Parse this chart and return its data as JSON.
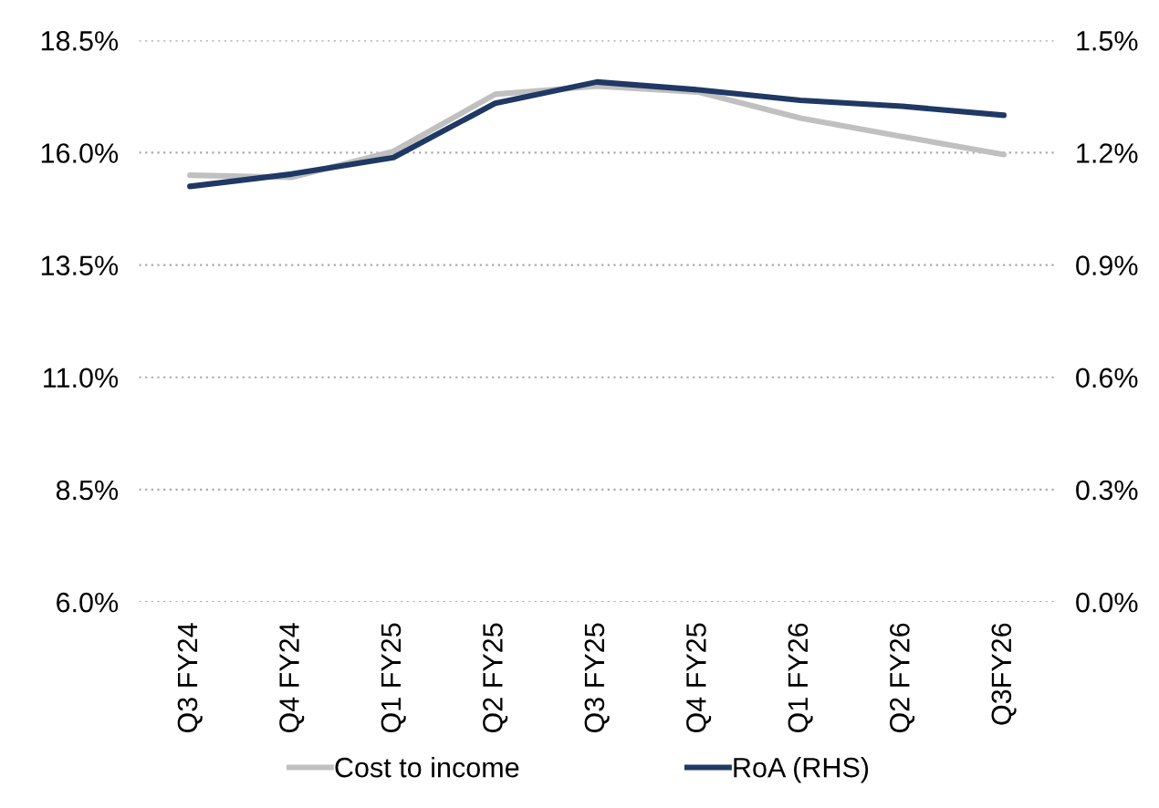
{
  "chart_data": {
    "type": "line",
    "categories": [
      "Q3 FY24",
      "Q4 FY24",
      "Q1 FY25",
      "Q2 FY25",
      "Q3 FY25",
      "Q4 FY25",
      "Q1 FY26",
      "Q2 FY26",
      "Q3FY26"
    ],
    "series": [
      {
        "name": "Cost to income",
        "color": "#c0c0c0",
        "values": [
          15.5,
          15.45,
          16.03,
          17.3,
          17.48,
          17.35,
          16.77,
          16.36,
          15.96
        ]
      },
      {
        "name": "RoA (RHS)",
        "color": "#1f3864",
        "axis": "y2",
        "values": [
          1.11,
          1.143,
          1.187,
          1.332,
          1.389,
          1.368,
          1.34,
          1.324,
          1.3
        ]
      }
    ],
    "ylim": [
      6.0,
      18.5
    ],
    "yticks": [
      {
        "value": 6.0,
        "label": "6.0%"
      },
      {
        "value": 8.5,
        "label": "8.5%"
      },
      {
        "value": 11.0,
        "label": "11.0%"
      },
      {
        "value": 13.5,
        "label": "13.5%"
      },
      {
        "value": 16.0,
        "label": "16.0%"
      },
      {
        "value": 18.5,
        "label": "18.5%"
      }
    ],
    "y2lim": [
      0.0,
      1.5
    ],
    "y2ticks": [
      {
        "value": 0.0,
        "label": "0.0%"
      },
      {
        "value": 0.3,
        "label": "0.3%"
      },
      {
        "value": 0.6,
        "label": "0.6%"
      },
      {
        "value": 0.9,
        "label": "0.9%"
      },
      {
        "value": 1.2,
        "label": "1.2%"
      },
      {
        "value": 1.5,
        "label": "1.5%"
      }
    ],
    "grid": "y",
    "legend": "bottom",
    "marker": "none",
    "line_style": "solid"
  }
}
